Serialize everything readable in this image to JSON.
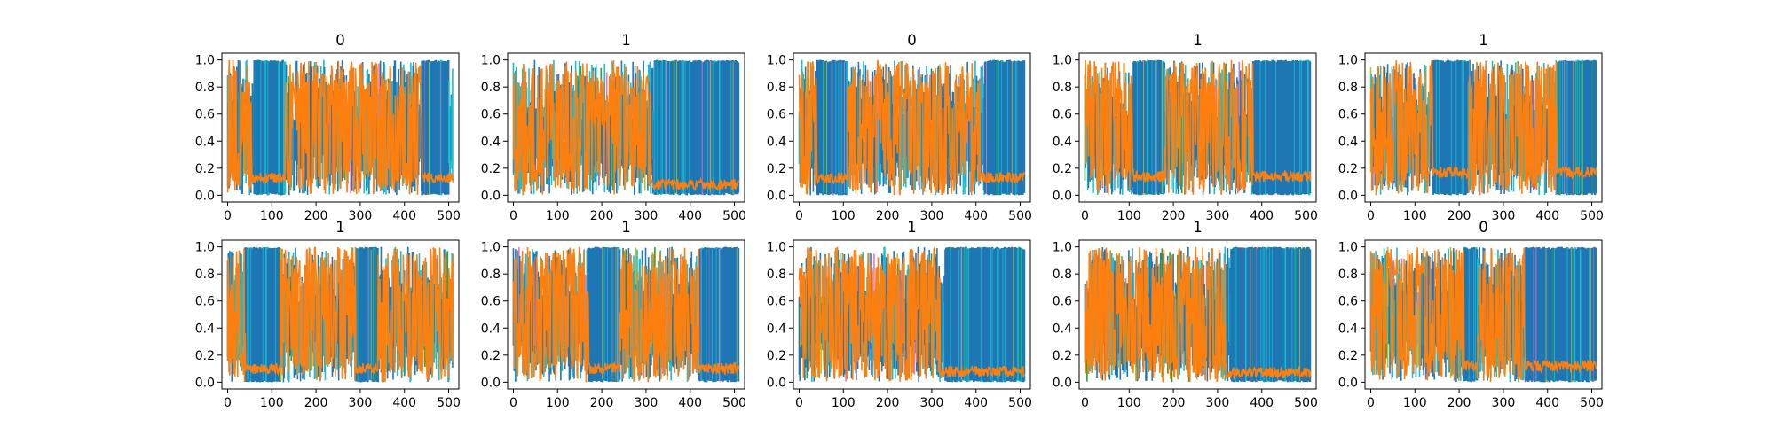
{
  "figure": {
    "rows": 2,
    "cols": 5
  },
  "style": {
    "blue": "#1f77b4",
    "cyan": "#17becf",
    "orange": "#ff7f0e",
    "green": "#2ca02c",
    "olive": "#bcbd22",
    "pink": "#e377c2",
    "purple": "#9467bd",
    "axis": "#000000",
    "background": "#ffffff"
  },
  "chart_data": [
    {
      "type": "line",
      "title": "0",
      "xlim": [
        -13,
        523
      ],
      "ylim": [
        -0.05,
        1.05
      ],
      "xticks": [
        0,
        100,
        200,
        300,
        400,
        500
      ],
      "yticks": [
        0.0,
        0.2,
        0.4,
        0.6,
        0.8,
        1.0
      ],
      "blue_band": [
        [
          60,
          130
        ],
        [
          440,
          500
        ]
      ],
      "orange_band": [
        [
          0,
          55
        ],
        [
          130,
          440
        ]
      ],
      "orange_low_level": 0.13
    },
    {
      "type": "line",
      "title": "1",
      "xlim": [
        -13,
        523
      ],
      "ylim": [
        -0.05,
        1.05
      ],
      "xticks": [
        0,
        100,
        200,
        300,
        400,
        500
      ],
      "yticks": [
        0.0,
        0.2,
        0.4,
        0.6,
        0.8,
        1.0
      ],
      "blue_band": [
        [
          320,
          510
        ]
      ],
      "orange_band": [
        [
          0,
          310
        ]
      ],
      "orange_low_level": 0.08
    },
    {
      "type": "line",
      "title": "0",
      "xlim": [
        -13,
        523
      ],
      "ylim": [
        -0.05,
        1.05
      ],
      "xticks": [
        0,
        100,
        200,
        300,
        400,
        500
      ],
      "yticks": [
        0.0,
        0.2,
        0.4,
        0.6,
        0.8,
        1.0
      ],
      "blue_band": [
        [
          40,
          110
        ],
        [
          420,
          510
        ]
      ],
      "orange_band": [
        [
          0,
          40
        ],
        [
          110,
          410
        ]
      ],
      "orange_low_level": 0.13
    },
    {
      "type": "line",
      "title": "1",
      "xlim": [
        -13,
        523
      ],
      "ylim": [
        -0.05,
        1.05
      ],
      "xticks": [
        0,
        100,
        200,
        300,
        400,
        500
      ],
      "yticks": [
        0.0,
        0.2,
        0.4,
        0.6,
        0.8,
        1.0
      ],
      "blue_band": [
        [
          110,
          180
        ],
        [
          380,
          510
        ]
      ],
      "orange_band": [
        [
          0,
          110
        ],
        [
          180,
          380
        ]
      ],
      "orange_low_level": 0.14
    },
    {
      "type": "line",
      "title": "1",
      "xlim": [
        -13,
        523
      ],
      "ylim": [
        -0.05,
        1.05
      ],
      "xticks": [
        0,
        100,
        200,
        300,
        400,
        500
      ],
      "yticks": [
        0.0,
        0.2,
        0.4,
        0.6,
        0.8,
        1.0
      ],
      "blue_band": [
        [
          140,
          220
        ],
        [
          420,
          510
        ]
      ],
      "orange_band": [
        [
          0,
          140
        ],
        [
          220,
          420
        ]
      ],
      "orange_low_level": 0.17
    },
    {
      "type": "line",
      "title": "1",
      "xlim": [
        -13,
        523
      ],
      "ylim": [
        -0.05,
        1.05
      ],
      "xticks": [
        0,
        100,
        200,
        300,
        400,
        500
      ],
      "yticks": [
        0.0,
        0.2,
        0.4,
        0.6,
        0.8,
        1.0
      ],
      "blue_band": [
        [
          40,
          120
        ],
        [
          290,
          340
        ]
      ],
      "orange_band": [
        [
          0,
          40
        ],
        [
          120,
          290
        ],
        [
          340,
          510
        ]
      ],
      "orange_low_level": 0.1
    },
    {
      "type": "line",
      "title": "1",
      "xlim": [
        -13,
        523
      ],
      "ylim": [
        -0.05,
        1.05
      ],
      "xticks": [
        0,
        100,
        200,
        300,
        400,
        500
      ],
      "yticks": [
        0.0,
        0.2,
        0.4,
        0.6,
        0.8,
        1.0
      ],
      "blue_band": [
        [
          170,
          240
        ],
        [
          420,
          510
        ]
      ],
      "orange_band": [
        [
          0,
          170
        ],
        [
          240,
          420
        ]
      ],
      "orange_low_level": 0.1
    },
    {
      "type": "line",
      "title": "1",
      "xlim": [
        -13,
        523
      ],
      "ylim": [
        -0.05,
        1.05
      ],
      "xticks": [
        0,
        100,
        200,
        300,
        400,
        500
      ],
      "yticks": [
        0.0,
        0.2,
        0.4,
        0.6,
        0.8,
        1.0
      ],
      "blue_band": [
        [
          330,
          510
        ]
      ],
      "orange_band": [
        [
          0,
          320
        ]
      ],
      "orange_low_level": 0.08
    },
    {
      "type": "line",
      "title": "1",
      "xlim": [
        -13,
        523
      ],
      "ylim": [
        -0.05,
        1.05
      ],
      "xticks": [
        0,
        100,
        200,
        300,
        400,
        500
      ],
      "yticks": [
        0.0,
        0.2,
        0.4,
        0.6,
        0.8,
        1.0
      ],
      "blue_band": [
        [
          330,
          510
        ]
      ],
      "orange_band": [
        [
          0,
          320
        ]
      ],
      "orange_low_level": 0.07
    },
    {
      "type": "line",
      "title": "0",
      "xlim": [
        -13,
        523
      ],
      "ylim": [
        -0.05,
        1.05
      ],
      "xticks": [
        0,
        100,
        200,
        300,
        400,
        500
      ],
      "yticks": [
        0.0,
        0.2,
        0.4,
        0.6,
        0.8,
        1.0
      ],
      "blue_band": [
        [
          210,
          240
        ],
        [
          350,
          510
        ]
      ],
      "orange_band": [
        [
          0,
          210
        ],
        [
          240,
          350
        ]
      ],
      "orange_low_level": 0.12
    }
  ]
}
